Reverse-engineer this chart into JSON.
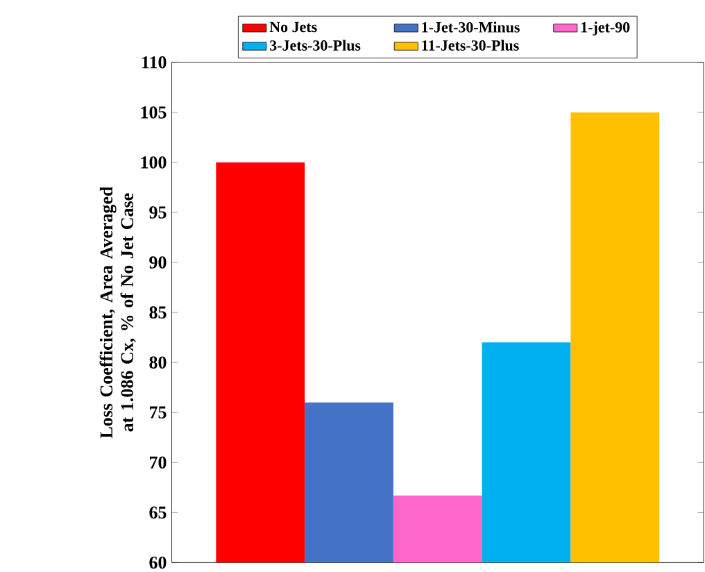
{
  "chart_data": {
    "type": "bar",
    "ylabel": "Loss Coefficient, Area Averaged at 1.086 Cx, % of No Jet Case",
    "categories": [
      null
    ],
    "series": [
      {
        "name": "No Jets",
        "color": "#ff0000",
        "values": [
          100
        ]
      },
      {
        "name": "1-Jet-30-Minus",
        "color": "#4472c4",
        "values": [
          76
        ]
      },
      {
        "name": "1-jet-90",
        "color": "#ff66cc",
        "values": [
          66.7
        ]
      },
      {
        "name": "3-Jets-30-Plus",
        "color": "#00b0f0",
        "values": [
          82
        ]
      },
      {
        "name": "11-Jets-30-Plus",
        "color": "#ffc000",
        "values": [
          105
        ]
      }
    ],
    "ylim": [
      60,
      110
    ],
    "yticks": [
      60,
      65,
      70,
      75,
      80,
      85,
      90,
      95,
      100,
      105,
      110
    ],
    "legend": "top",
    "grid": false
  }
}
